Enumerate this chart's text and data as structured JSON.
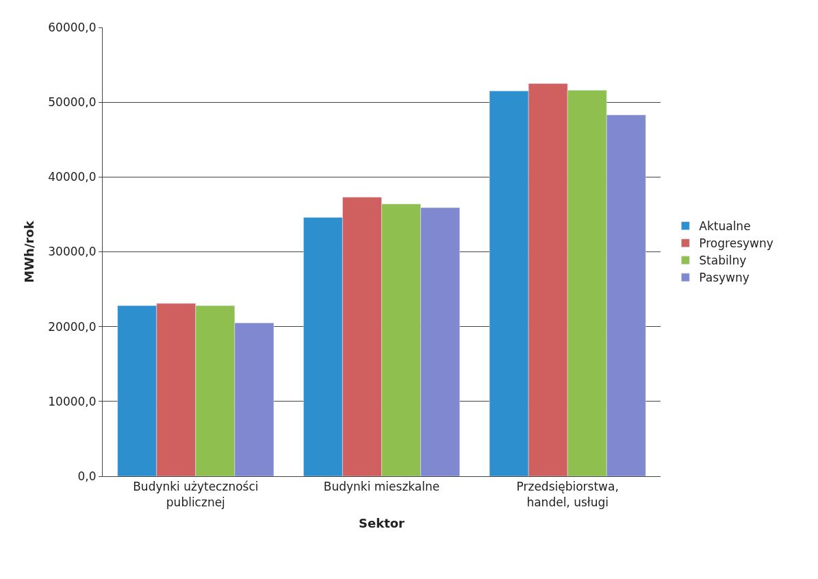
{
  "chart_data": {
    "type": "bar",
    "xlabel": "Sektor",
    "ylabel": "MWh/rok",
    "categories": [
      "Budynki użyteczności publicznej",
      "Budynki mieszkalne",
      "Przedsiębiorstwa, handel, usługi"
    ],
    "series": [
      {
        "name": "Aktualne",
        "color": "#2e8fcf",
        "values": [
          22800,
          34600,
          51500
        ]
      },
      {
        "name": "Progresywny",
        "color": "#d06060",
        "values": [
          23100,
          37300,
          52500
        ]
      },
      {
        "name": "Stabilny",
        "color": "#8fc04f",
        "values": [
          22800,
          36400,
          51600
        ]
      },
      {
        "name": "Pasywny",
        "color": "#8088d0",
        "values": [
          20500,
          35900,
          48300
        ]
      }
    ],
    "ylim": [
      0,
      60000
    ],
    "yticks": [
      {
        "value": 0,
        "label": "0,0"
      },
      {
        "value": 10000,
        "label": "10000,0"
      },
      {
        "value": 20000,
        "label": "20000,0"
      },
      {
        "value": 30000,
        "label": "30000,0"
      },
      {
        "value": 40000,
        "label": "40000,0"
      },
      {
        "value": 50000,
        "label": "50000,0"
      },
      {
        "value": 60000,
        "label": "60000,0"
      }
    ],
    "grid": "y",
    "legend": "right"
  }
}
